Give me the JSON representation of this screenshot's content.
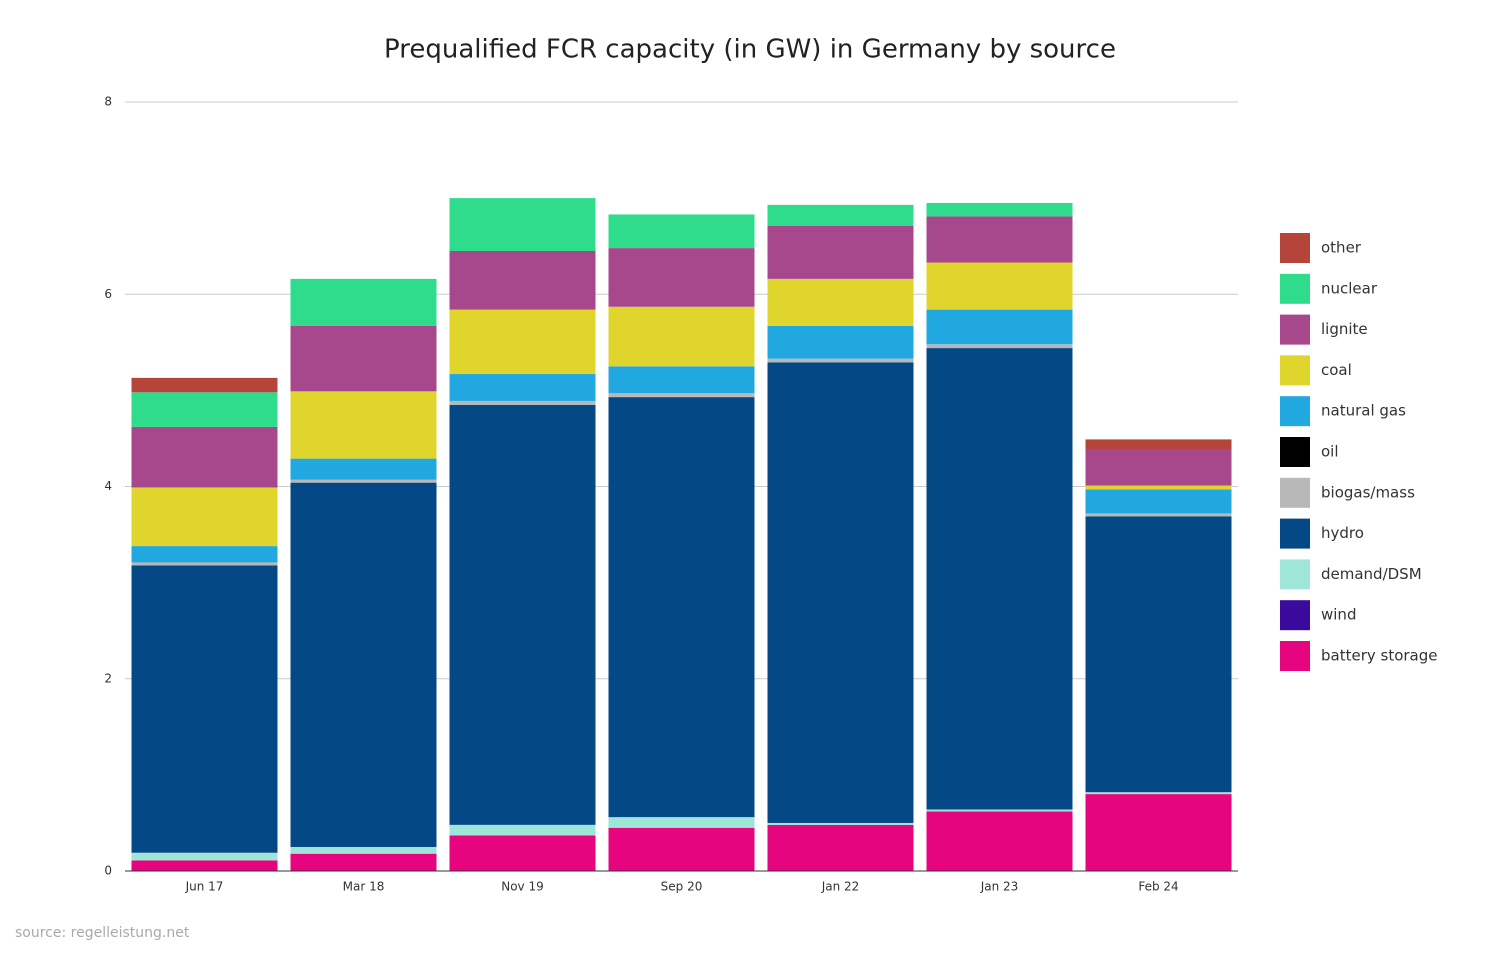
{
  "chart_data": {
    "type": "stacked_bar",
    "title": "Prequalified FCR capacity (in GW) in Germany by source",
    "source": "source: regelleistung.net",
    "categories": [
      "Jun 17",
      "Mar 18",
      "Nov 19",
      "Sep 20",
      "Jan 22",
      "Jan 23",
      "Feb 24"
    ],
    "ylim": [
      0,
      8
    ],
    "yticks": [
      0,
      2,
      4,
      6,
      8
    ],
    "grid": true,
    "legend": "right",
    "series": [
      {
        "name": "other",
        "color": "#b5453a",
        "values": [
          0.15,
          0,
          0,
          0,
          0,
          0,
          0.11
        ]
      },
      {
        "name": "nuclear",
        "color": "#2edc8c",
        "values": [
          0.36,
          0.49,
          0.55,
          0.35,
          0.22,
          0.14,
          0
        ]
      },
      {
        "name": "lignite",
        "color": "#a8488c",
        "values": [
          0.63,
          0.68,
          0.61,
          0.61,
          0.55,
          0.48,
          0.37
        ]
      },
      {
        "name": "coal",
        "color": "#dfd52c",
        "values": [
          0.61,
          0.7,
          0.67,
          0.62,
          0.49,
          0.49,
          0.04
        ]
      },
      {
        "name": "natural gas",
        "color": "#22a8e0",
        "values": [
          0.17,
          0.22,
          0.28,
          0.28,
          0.34,
          0.36,
          0.25
        ]
      },
      {
        "name": "oil",
        "color": "#000000",
        "values": [
          0,
          0,
          0,
          0,
          0,
          0,
          0
        ]
      },
      {
        "name": "biogas/mass",
        "color": "#b8b8b8",
        "values": [
          0.03,
          0.03,
          0.04,
          0.04,
          0.04,
          0.04,
          0.03
        ]
      },
      {
        "name": "hydro",
        "color": "#044886",
        "values": [
          2.99,
          3.79,
          4.37,
          4.37,
          4.79,
          4.8,
          2.87
        ]
      },
      {
        "name": "demand/DSM",
        "color": "#9fe6d8",
        "values": [
          0.08,
          0.07,
          0.11,
          0.11,
          0.02,
          0.02,
          0.02
        ]
      },
      {
        "name": "wind",
        "color": "#3b0a9c",
        "values": [
          0,
          0,
          0,
          0,
          0,
          0,
          0
        ]
      },
      {
        "name": "battery storage",
        "color": "#e6057e",
        "values": [
          0.11,
          0.18,
          0.37,
          0.45,
          0.48,
          0.62,
          0.8
        ]
      }
    ]
  }
}
